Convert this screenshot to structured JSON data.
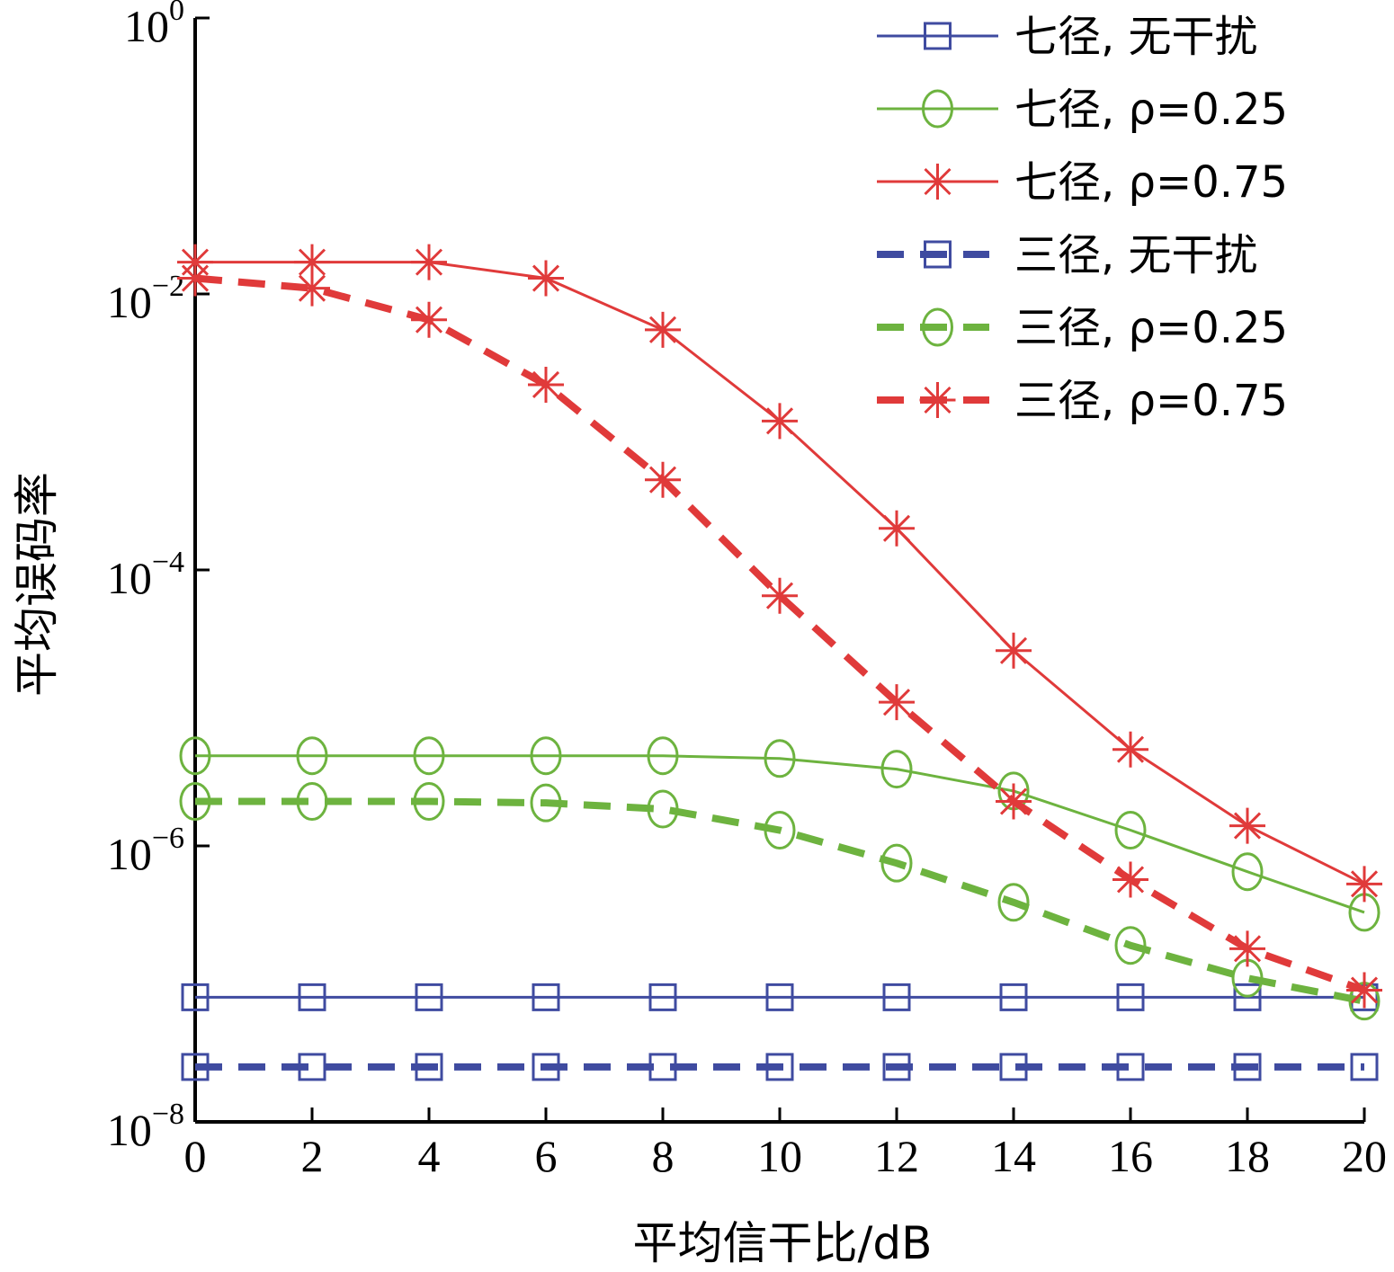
{
  "chart_data": {
    "type": "line",
    "xlabel": "平均信干比/dB",
    "ylabel": "平均误码率",
    "y_scale": "log",
    "xlim": [
      0,
      20
    ],
    "ylim": [
      1e-08,
      1
    ],
    "grid": false,
    "legend_position": "top-right",
    "x_ticks": [
      "0",
      "2",
      "4",
      "6",
      "8",
      "10",
      "12",
      "14",
      "16",
      "18",
      "20"
    ],
    "y_ticks": [
      {
        "value": 1,
        "base": "10",
        "exp": "0"
      },
      {
        "value": 0.01,
        "base": "10",
        "exp": "−2"
      },
      {
        "value": 0.0001,
        "base": "10",
        "exp": "−4"
      },
      {
        "value": 1e-06,
        "base": "10",
        "exp": "−6"
      },
      {
        "value": 1e-08,
        "base": "10",
        "exp": "−8"
      }
    ],
    "x": [
      0,
      2,
      4,
      6,
      8,
      10,
      12,
      14,
      16,
      18,
      20
    ],
    "series": [
      {
        "name": "七径, 无干扰",
        "color": "#3f4ba0",
        "line": "solid",
        "marker": "square",
        "values": [
          8e-08,
          8e-08,
          8e-08,
          8e-08,
          8e-08,
          8e-08,
          8e-08,
          8e-08,
          8e-08,
          8e-08,
          8e-08
        ]
      },
      {
        "name": "七径, ρ=0.25",
        "color": "#6db33f",
        "line": "solid",
        "marker": "circle",
        "values": [
          4.5e-06,
          4.5e-06,
          4.5e-06,
          4.5e-06,
          4.5e-06,
          4.3e-06,
          3.6e-06,
          2.5e-06,
          1.3e-06,
          6.5e-07,
          3.3e-07
        ]
      },
      {
        "name": "七径, ρ=0.75",
        "color": "#e03a3a",
        "line": "solid",
        "marker": "asterisk",
        "values": [
          0.017,
          0.017,
          0.017,
          0.013,
          0.0055,
          0.0012,
          0.0002,
          2.6e-05,
          5e-06,
          1.4e-06,
          5.3e-07
        ]
      },
      {
        "name": "三径, 无干扰",
        "color": "#3f4ba0",
        "line": "dashed",
        "marker": "square",
        "values": [
          2.5e-08,
          2.5e-08,
          2.5e-08,
          2.5e-08,
          2.5e-08,
          2.5e-08,
          2.5e-08,
          2.5e-08,
          2.5e-08,
          2.5e-08,
          2.5e-08
        ]
      },
      {
        "name": "三径, ρ=0.25",
        "color": "#6db33f",
        "line": "dashed",
        "marker": "circle",
        "values": [
          2.1e-06,
          2.1e-06,
          2.1e-06,
          2.05e-06,
          1.85e-06,
          1.3e-06,
          7.5e-07,
          3.9e-07,
          1.9e-07,
          1.1e-07,
          7.5e-08
        ]
      },
      {
        "name": "三径, ρ=0.75",
        "color": "#e03a3a",
        "line": "dashed",
        "marker": "asterisk",
        "values": [
          0.013,
          0.011,
          0.0065,
          0.0022,
          0.00045,
          6.5e-05,
          1.1e-05,
          2.1e-06,
          5.7e-07,
          1.8e-07,
          9e-08
        ]
      }
    ]
  }
}
